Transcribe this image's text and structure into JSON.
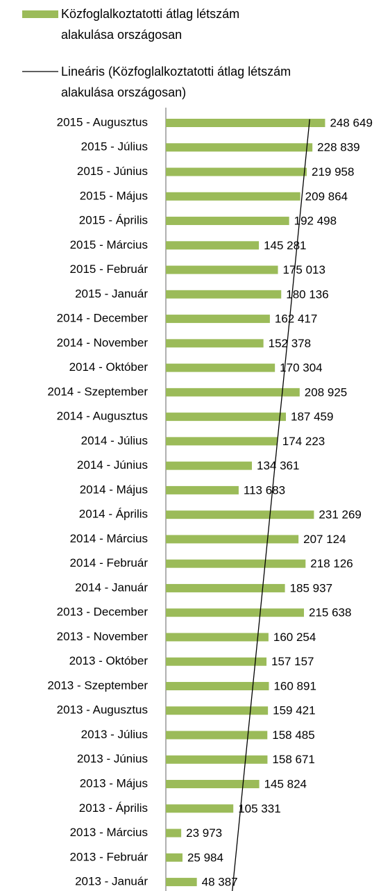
{
  "chart_data": {
    "type": "bar",
    "orientation": "horizontal",
    "categories": [
      "2015 - Augusztus",
      "2015 - Július",
      "2015 - Június",
      "2015 - Május",
      "2015 - Április",
      "2015 - Március",
      "2015 - Február",
      "2015 - Január",
      "2014 - December",
      "2014 - November",
      "2014 - Október",
      "2014 - Szeptember",
      "2014 - Augusztus",
      "2014 - Július",
      "2014 - Június",
      "2014 - Május",
      "2014 - Április",
      "2014 - Március",
      "2014 - Február",
      "2014 - Január",
      "2013 - December",
      "2013 - November",
      "2013 - Október",
      "2013 - Szeptember",
      "2013 - Augusztus",
      "2013 - Július",
      "2013 - Június",
      "2013 - Május",
      "2013 - Április",
      "2013 - Március",
      "2013 - Február",
      "2013 - Január"
    ],
    "series": [
      {
        "name": "Közfoglalkoztatotti átlag létszám alakulása országosan",
        "color": "#9bbb59",
        "values": [
          248649,
          228839,
          219958,
          209864,
          192498,
          145281,
          175013,
          180136,
          162417,
          152378,
          170304,
          208925,
          187459,
          174223,
          134361,
          113683,
          231269,
          207124,
          218126,
          185937,
          215638,
          160254,
          157157,
          160891,
          159421,
          158485,
          158671,
          145824,
          105331,
          23973,
          25984,
          48387
        ],
        "value_labels": [
          "248 649",
          "228 839",
          "219 958",
          "209 864",
          "192 498",
          "145 281",
          "175 013",
          "180 136",
          "162 417",
          "152 378",
          "170 304",
          "208 925",
          "187 459",
          "174 223",
          "134 361",
          "113 683",
          "231 269",
          "207 124",
          "218 126",
          "185 937",
          "215 638",
          "160 254",
          "157 157",
          "160 891",
          "159 421",
          "158 485",
          "158 671",
          "145 824",
          "105 331",
          "23 973",
          "25 984",
          "48 387"
        ]
      }
    ],
    "trendline": {
      "name": "Lineáris (Közfoglalkoztatotti átlag létszám alakulása országosan)",
      "color": "#000000"
    },
    "xlim": [
      0,
      350000
    ]
  }
}
